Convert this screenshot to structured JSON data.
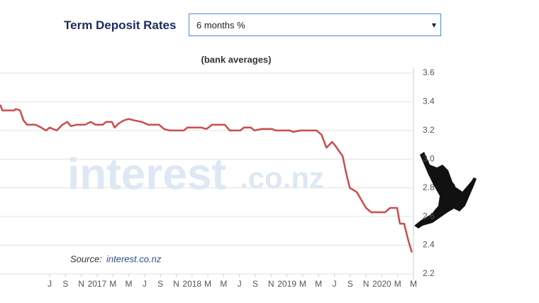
{
  "header": {
    "title": "Term Deposit Rates",
    "dropdown": "6 months %"
  },
  "chart_data": {
    "type": "line",
    "subtitle": "(bank averages)",
    "source": {
      "label": "Source:",
      "link": "interest.co.nz"
    },
    "watermark": [
      "interest",
      ".co.nz"
    ],
    "xlim": [
      -6.28,
      46
    ],
    "ylim": [
      2.2,
      3.6
    ],
    "yticks": [
      {
        "value": 3.6,
        "label": "3.6"
      },
      {
        "value": 3.4,
        "label": "3.4"
      },
      {
        "value": 3.2,
        "label": "3.2"
      },
      {
        "value": 3.0,
        "label": "3.0"
      },
      {
        "value": 2.8,
        "label": "2.8"
      },
      {
        "value": 2.6,
        "label": "2.6"
      },
      {
        "value": 2.4,
        "label": "2.4"
      },
      {
        "value": 2.2,
        "label": "2.2"
      }
    ],
    "xticks": [
      {
        "value": 0,
        "label": "J"
      },
      {
        "value": 2,
        "label": "S"
      },
      {
        "value": 4,
        "label": "N"
      },
      {
        "value": 6,
        "label": "2017"
      },
      {
        "value": 8,
        "label": "M"
      },
      {
        "value": 10,
        "label": "M"
      },
      {
        "value": 12,
        "label": "J"
      },
      {
        "value": 14,
        "label": "S"
      },
      {
        "value": 16,
        "label": "N"
      },
      {
        "value": 18,
        "label": "2018"
      },
      {
        "value": 20,
        "label": "M"
      },
      {
        "value": 22,
        "label": "M"
      },
      {
        "value": 24,
        "label": "J"
      },
      {
        "value": 26,
        "label": "S"
      },
      {
        "value": 28,
        "label": "N"
      },
      {
        "value": 30,
        "label": "2019"
      },
      {
        "value": 32,
        "label": "M"
      },
      {
        "value": 34,
        "label": "M"
      },
      {
        "value": 36,
        "label": "J"
      },
      {
        "value": 38,
        "label": "S"
      },
      {
        "value": 40,
        "label": "N"
      },
      {
        "value": 42,
        "label": "2020"
      },
      {
        "value": 44,
        "label": "M"
      },
      {
        "value": 46,
        "label": "M"
      }
    ],
    "grid": true,
    "series": [
      {
        "color": "#cc4b4b",
        "x": [
          -6.25,
          -5.98,
          -4.46,
          -4.29,
          -3.75,
          -3.3,
          -2.86,
          -1.79,
          -1.07,
          -0.45,
          0,
          0.89,
          1.61,
          2.23,
          2.68,
          3.39,
          4.46,
          5.18,
          5.8,
          6.7,
          7.14,
          7.86,
          8.21,
          8.75,
          9.38,
          10,
          10.71,
          11.61,
          12.5,
          13.84,
          14.46,
          15.18,
          16.96,
          17.41,
          19.2,
          19.82,
          20.54,
          22.14,
          22.77,
          24.11,
          24.55,
          25.45,
          25.89,
          26.79,
          28.13,
          28.57,
          30.36,
          30.8,
          31.7,
          33.04,
          33.75,
          34.38,
          35,
          35.71,
          36.16,
          37.05,
          37.5,
          37.95,
          38.84,
          39.46,
          40,
          40.63,
          42.41,
          43.04,
          43.93,
          44.29,
          44.82,
          45.36,
          45.8
        ],
        "values": [
          3.38,
          3.34,
          3.34,
          3.35,
          3.34,
          3.27,
          3.24,
          3.24,
          3.22,
          3.2,
          3.22,
          3.2,
          3.24,
          3.26,
          3.23,
          3.24,
          3.24,
          3.26,
          3.24,
          3.24,
          3.26,
          3.26,
          3.22,
          3.25,
          3.27,
          3.28,
          3.27,
          3.26,
          3.24,
          3.24,
          3.21,
          3.2,
          3.2,
          3.22,
          3.22,
          3.21,
          3.24,
          3.24,
          3.2,
          3.2,
          3.22,
          3.22,
          3.2,
          3.21,
          3.21,
          3.2,
          3.2,
          3.19,
          3.2,
          3.2,
          3.2,
          3.17,
          3.08,
          3.12,
          3.09,
          3.02,
          2.9,
          2.8,
          2.77,
          2.71,
          2.66,
          2.63,
          2.63,
          2.66,
          2.66,
          2.55,
          2.55,
          2.43,
          2.35
        ]
      }
    ]
  }
}
